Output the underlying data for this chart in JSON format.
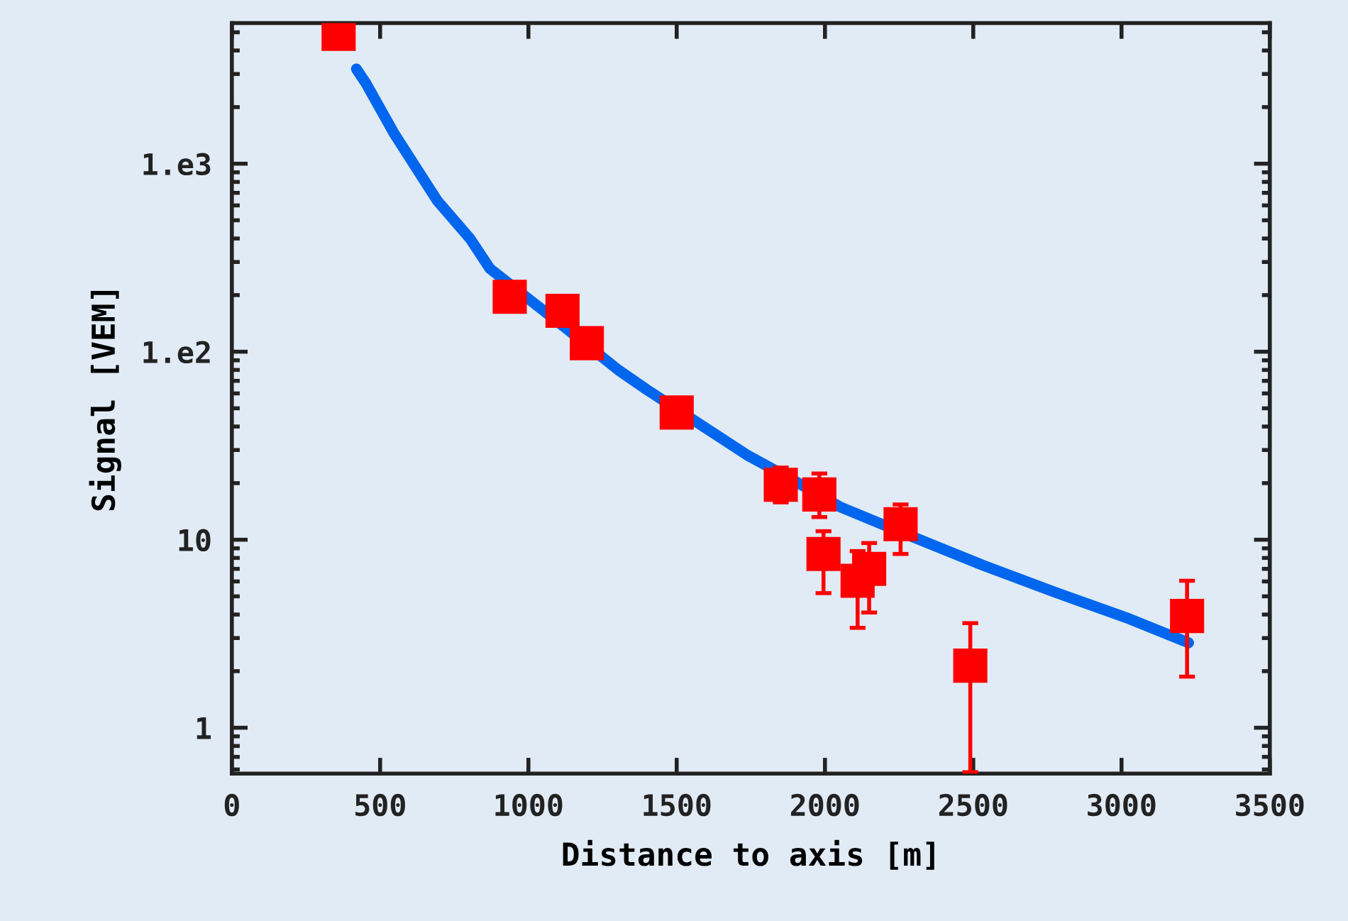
{
  "chart_data": {
    "type": "scatter",
    "xlabel": "Distance to axis [m]",
    "ylabel": "Signal [VEM]",
    "log": "y",
    "xlim": [
      0,
      3500
    ],
    "xticks": [
      0,
      500,
      1000,
      1500,
      2000,
      2500,
      3000,
      3500
    ],
    "ylim": [
      0.57,
      5600
    ],
    "yticks": [
      {
        "value": 1,
        "label": "1"
      },
      {
        "value": 10,
        "label": "10"
      },
      {
        "value": 100,
        "label": "1.e2"
      },
      {
        "value": 1000,
        "label": "1.e3"
      }
    ],
    "grid": false,
    "series": [
      {
        "type": "line",
        "color": "#0066ee",
        "marker": "none",
        "line_style": "solid",
        "x": [
          420,
          452,
          548,
          692,
          803,
          870,
          1125,
          1303,
          1400,
          1736,
          1894,
          2053,
          2293,
          2534,
          2774,
          3014,
          3226
        ],
        "values": [
          3190,
          2680,
          1440,
          638,
          400,
          277,
          134,
          80,
          62.7,
          28.3,
          20.7,
          14.9,
          10.4,
          7.3,
          5.27,
          3.86,
          2.83
        ]
      },
      {
        "color": "#ff0000",
        "marker": "square",
        "x": [
          360,
          937,
          1115,
          1197,
          1500,
          1851,
          1981,
          1995,
          2110,
          2149,
          2255,
          2490,
          3221
        ],
        "values": [
          4900,
          196,
          165,
          111,
          47.5,
          19.6,
          17.4,
          8.4,
          6.05,
          7.0,
          12.1,
          2.14,
          3.93
        ],
        "errors": [
          null,
          null,
          null,
          null,
          null,
          [
            15.8,
            24.2
          ],
          [
            13.2,
            22.5
          ],
          [
            5.2,
            11.1
          ],
          [
            3.4,
            8.7
          ],
          [
            4.1,
            9.6
          ],
          [
            8.4,
            15.4
          ],
          [
            0.58,
            3.6
          ],
          [
            1.87,
            6.05
          ]
        ]
      }
    ]
  }
}
